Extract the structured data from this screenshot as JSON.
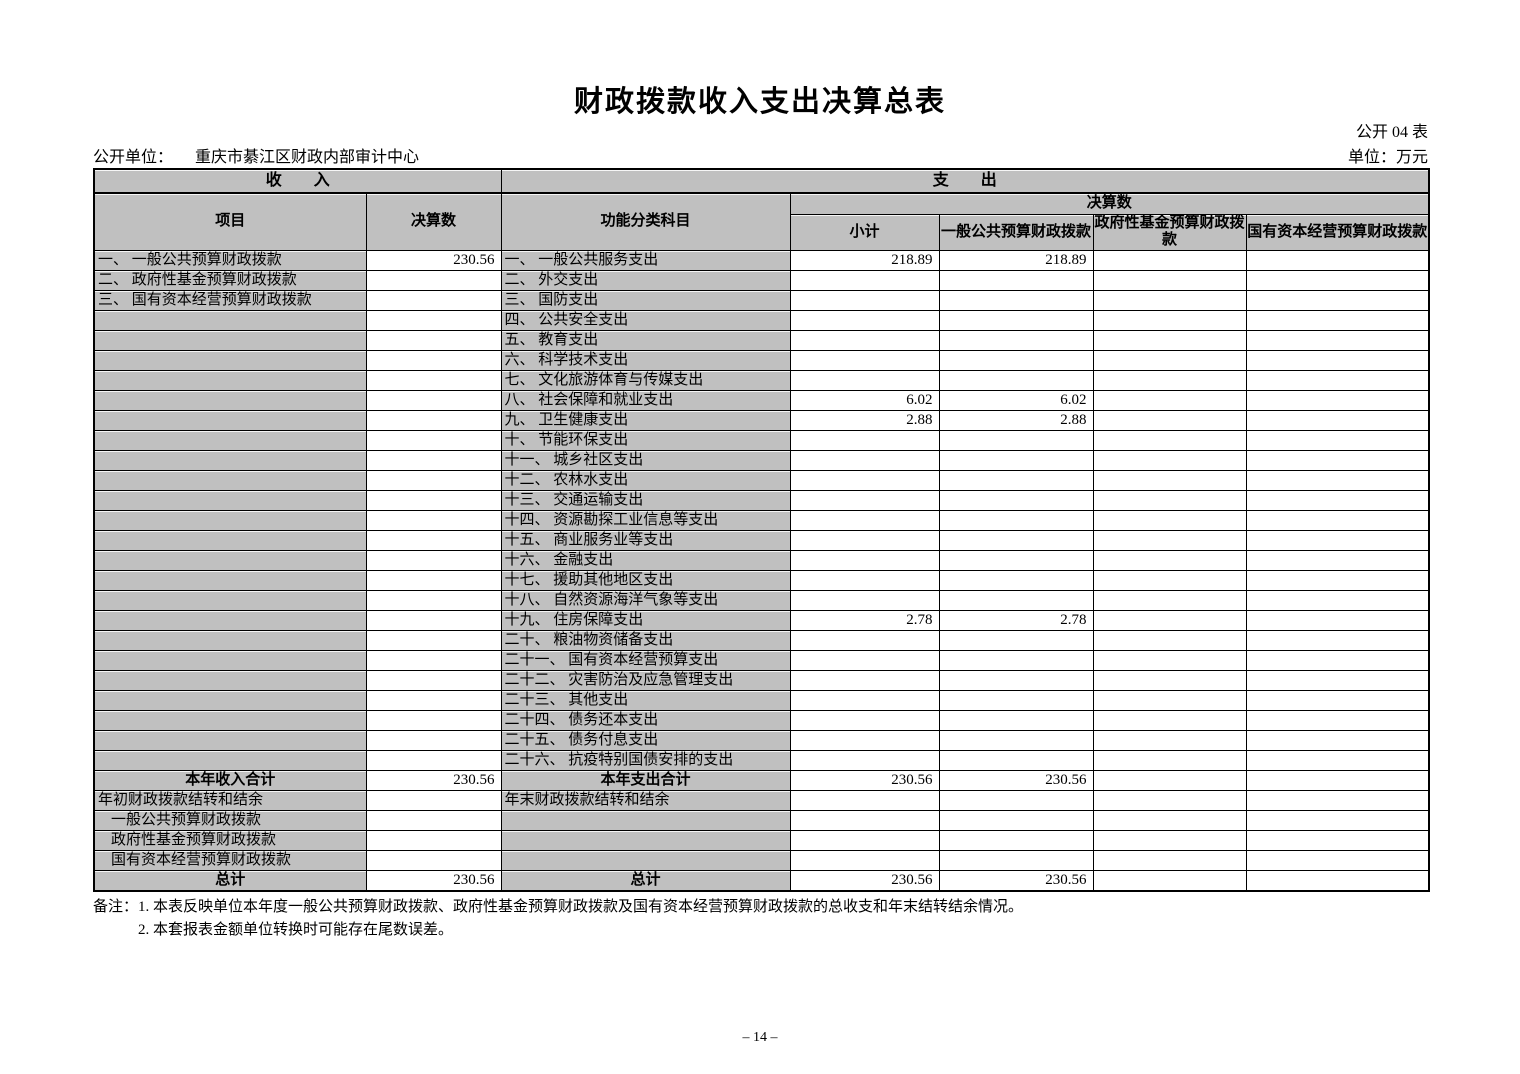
{
  "page": {
    "title": "财政拨款收入支出决算总表",
    "table_code": "公开 04 表",
    "org_label": "公开单位：",
    "org_name": "重庆市綦江区财政内部审计中心",
    "currency_unit": "单位：万元",
    "page_number": "– 14 –"
  },
  "table": {
    "header": {
      "income": "收　　入",
      "expense": "支　　出",
      "item": "项目",
      "final_amount": "决算数",
      "func_class": "功能分类科目",
      "final_amount_group": "决算数",
      "subtotal": "小计",
      "general_budget": "一般公共预算财政拨款",
      "gov_fund_budget": "政府性基金预算财政拨款",
      "state_capital_budget": "国有资本经营预算财政拨款"
    },
    "rows": [
      {
        "income_item": "一、 一般公共预算财政拨款",
        "income_value": "230.56",
        "income_style": "",
        "expense_item": "一、 一般公共服务支出",
        "expense_style": "",
        "subtotal": "218.89",
        "general": "218.89",
        "gov_fund": "",
        "state_capital": ""
      },
      {
        "income_item": "二、 政府性基金预算财政拨款",
        "income_value": "",
        "income_style": "",
        "expense_item": "二、 外交支出",
        "expense_style": "",
        "subtotal": "",
        "general": "",
        "gov_fund": "",
        "state_capital": ""
      },
      {
        "income_item": "三、 国有资本经营预算财政拨款",
        "income_value": "",
        "income_style": "",
        "expense_item": "三、 国防支出",
        "expense_style": "",
        "subtotal": "",
        "general": "",
        "gov_fund": "",
        "state_capital": ""
      },
      {
        "income_item": "",
        "income_value": "",
        "income_style": "",
        "expense_item": "四、 公共安全支出",
        "expense_style": "",
        "subtotal": "",
        "general": "",
        "gov_fund": "",
        "state_capital": ""
      },
      {
        "income_item": "",
        "income_value": "",
        "income_style": "",
        "expense_item": "五、 教育支出",
        "expense_style": "",
        "subtotal": "",
        "general": "",
        "gov_fund": "",
        "state_capital": ""
      },
      {
        "income_item": "",
        "income_value": "",
        "income_style": "",
        "expense_item": "六、 科学技术支出",
        "expense_style": "",
        "subtotal": "",
        "general": "",
        "gov_fund": "",
        "state_capital": ""
      },
      {
        "income_item": "",
        "income_value": "",
        "income_style": "",
        "expense_item": "七、 文化旅游体育与传媒支出",
        "expense_style": "",
        "subtotal": "",
        "general": "",
        "gov_fund": "",
        "state_capital": ""
      },
      {
        "income_item": "",
        "income_value": "",
        "income_style": "",
        "expense_item": "八、 社会保障和就业支出",
        "expense_style": "",
        "subtotal": "6.02",
        "general": "6.02",
        "gov_fund": "",
        "state_capital": ""
      },
      {
        "income_item": "",
        "income_value": "",
        "income_style": "",
        "expense_item": "九、 卫生健康支出",
        "expense_style": "",
        "subtotal": "2.88",
        "general": "2.88",
        "gov_fund": "",
        "state_capital": ""
      },
      {
        "income_item": "",
        "income_value": "",
        "income_style": "",
        "expense_item": "十、 节能环保支出",
        "expense_style": "",
        "subtotal": "",
        "general": "",
        "gov_fund": "",
        "state_capital": ""
      },
      {
        "income_item": "",
        "income_value": "",
        "income_style": "",
        "expense_item": "十一、 城乡社区支出",
        "expense_style": "",
        "subtotal": "",
        "general": "",
        "gov_fund": "",
        "state_capital": ""
      },
      {
        "income_item": "",
        "income_value": "",
        "income_style": "",
        "expense_item": "十二、 农林水支出",
        "expense_style": "",
        "subtotal": "",
        "general": "",
        "gov_fund": "",
        "state_capital": ""
      },
      {
        "income_item": "",
        "income_value": "",
        "income_style": "",
        "expense_item": "十三、 交通运输支出",
        "expense_style": "",
        "subtotal": "",
        "general": "",
        "gov_fund": "",
        "state_capital": ""
      },
      {
        "income_item": "",
        "income_value": "",
        "income_style": "",
        "expense_item": "十四、 资源勘探工业信息等支出",
        "expense_style": "",
        "subtotal": "",
        "general": "",
        "gov_fund": "",
        "state_capital": ""
      },
      {
        "income_item": "",
        "income_value": "",
        "income_style": "",
        "expense_item": "十五、 商业服务业等支出",
        "expense_style": "",
        "subtotal": "",
        "general": "",
        "gov_fund": "",
        "state_capital": ""
      },
      {
        "income_item": "",
        "income_value": "",
        "income_style": "",
        "expense_item": "十六、 金融支出",
        "expense_style": "",
        "subtotal": "",
        "general": "",
        "gov_fund": "",
        "state_capital": ""
      },
      {
        "income_item": "",
        "income_value": "",
        "income_style": "",
        "expense_item": "十七、 援助其他地区支出",
        "expense_style": "",
        "subtotal": "",
        "general": "",
        "gov_fund": "",
        "state_capital": ""
      },
      {
        "income_item": "",
        "income_value": "",
        "income_style": "",
        "expense_item": "十八、 自然资源海洋气象等支出",
        "expense_style": "",
        "subtotal": "",
        "general": "",
        "gov_fund": "",
        "state_capital": ""
      },
      {
        "income_item": "",
        "income_value": "",
        "income_style": "",
        "expense_item": "十九、 住房保障支出",
        "expense_style": "",
        "subtotal": "2.78",
        "general": "2.78",
        "gov_fund": "",
        "state_capital": ""
      },
      {
        "income_item": "",
        "income_value": "",
        "income_style": "",
        "expense_item": "二十、 粮油物资储备支出",
        "expense_style": "",
        "subtotal": "",
        "general": "",
        "gov_fund": "",
        "state_capital": ""
      },
      {
        "income_item": "",
        "income_value": "",
        "income_style": "",
        "expense_item": "二十一、 国有资本经营预算支出",
        "expense_style": "",
        "subtotal": "",
        "general": "",
        "gov_fund": "",
        "state_capital": ""
      },
      {
        "income_item": "",
        "income_value": "",
        "income_style": "",
        "expense_item": "二十二、 灾害防治及应急管理支出",
        "expense_style": "",
        "subtotal": "",
        "general": "",
        "gov_fund": "",
        "state_capital": ""
      },
      {
        "income_item": "",
        "income_value": "",
        "income_style": "",
        "expense_item": "二十三、 其他支出",
        "expense_style": "",
        "subtotal": "",
        "general": "",
        "gov_fund": "",
        "state_capital": ""
      },
      {
        "income_item": "",
        "income_value": "",
        "income_style": "",
        "expense_item": "二十四、 债务还本支出",
        "expense_style": "",
        "subtotal": "",
        "general": "",
        "gov_fund": "",
        "state_capital": ""
      },
      {
        "income_item": "",
        "income_value": "",
        "income_style": "",
        "expense_item": "二十五、 债务付息支出",
        "expense_style": "",
        "subtotal": "",
        "general": "",
        "gov_fund": "",
        "state_capital": ""
      },
      {
        "income_item": "",
        "income_value": "",
        "income_style": "",
        "expense_item": "二十六、 抗疫特别国债安排的支出",
        "expense_style": "",
        "subtotal": "",
        "general": "",
        "gov_fund": "",
        "state_capital": ""
      },
      {
        "income_item": "本年收入合计",
        "income_value": "230.56",
        "income_style": "total",
        "expense_item": "本年支出合计",
        "expense_style": "total",
        "subtotal": "230.56",
        "general": "230.56",
        "gov_fund": "",
        "state_capital": ""
      },
      {
        "income_item": "年初财政拨款结转和结余",
        "income_value": "",
        "income_style": "",
        "expense_item": "年末财政拨款结转和结余",
        "expense_style": "",
        "subtotal": "",
        "general": "",
        "gov_fund": "",
        "state_capital": ""
      },
      {
        "income_item": "一般公共预算财政拨款",
        "income_value": "",
        "income_style": "indent",
        "expense_item": "",
        "expense_style": "",
        "subtotal": "",
        "general": "",
        "gov_fund": "",
        "state_capital": ""
      },
      {
        "income_item": "政府性基金预算财政拨款",
        "income_value": "",
        "income_style": "indent",
        "expense_item": "",
        "expense_style": "",
        "subtotal": "",
        "general": "",
        "gov_fund": "",
        "state_capital": ""
      },
      {
        "income_item": "国有资本经营预算财政拨款",
        "income_value": "",
        "income_style": "indent",
        "expense_item": "",
        "expense_style": "",
        "subtotal": "",
        "general": "",
        "gov_fund": "",
        "state_capital": ""
      },
      {
        "income_item": "总计",
        "income_value": "230.56",
        "income_style": "total",
        "expense_item": "总计",
        "expense_style": "total",
        "subtotal": "230.56",
        "general": "230.56",
        "gov_fund": "",
        "state_capital": ""
      }
    ]
  },
  "notes": {
    "label": "备注：",
    "line1": "1. 本表反映单位本年度一般公共预算财政拨款、政府性基金预算财政拨款及国有资本经营预算财政拨款的总收支和年末结转结余情况。",
    "line2": "2. 本套报表金额单位转换时可能存在尾数误差。"
  },
  "colors": {
    "header_fill": "#c0c0c0",
    "border": "#000000",
    "background": "#ffffff"
  }
}
